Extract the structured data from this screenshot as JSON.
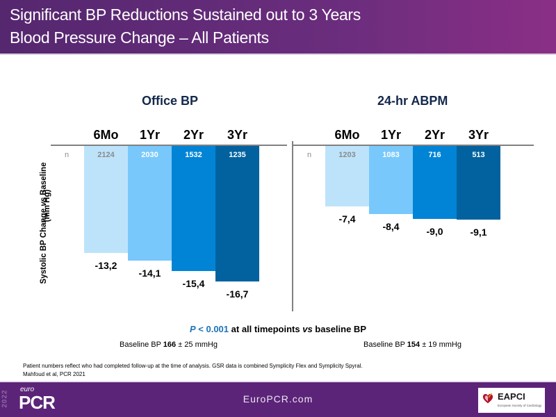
{
  "header": {
    "title_line1": "Significant BP Reductions Sustained out to 3 Years",
    "title_line2": "Blood Pressure Change – All Patients"
  },
  "chart_data": [
    {
      "type": "bar",
      "title": "Office BP",
      "categories": [
        "6Mo",
        "1Yr",
        "2Yr",
        "3Yr"
      ],
      "n_label": "n",
      "n_values": [
        "2124",
        "2030",
        "1532",
        "1235"
      ],
      "values": [
        -13.2,
        -14.1,
        -15.4,
        -16.7
      ],
      "value_labels": [
        "-13,2",
        "-14,1",
        "-15,4",
        "-16,7"
      ],
      "ylabel": "Systolic BP Change vs Baseline (mm Hg)",
      "ylim": [
        -17,
        0
      ],
      "colors": [
        "#bde3fb",
        "#78c8fc",
        "#0284d6",
        "#02629f"
      ]
    },
    {
      "type": "bar",
      "title": "24-hr ABPM",
      "categories": [
        "6Mo",
        "1Yr",
        "2Yr",
        "3Yr"
      ],
      "n_label": "n",
      "n_values": [
        "1203",
        "1083",
        "716",
        "513"
      ],
      "values": [
        -7.4,
        -8.4,
        -9.0,
        -9.1
      ],
      "value_labels": [
        "-7,4",
        "-8,4",
        "-9,0",
        "-9,1"
      ],
      "ylim": [
        -17,
        0
      ],
      "colors": [
        "#bde3fb",
        "#78c8fc",
        "#0284d6",
        "#02629f"
      ]
    }
  ],
  "yaxis": {
    "line1_a": "Systolic BP Change ",
    "line1_b": "vs",
    "line1_c": " Baseline",
    "line2": "(mm Hg)"
  },
  "significance": {
    "p_part": "P",
    "p_value": " < 0.001",
    "rest_a": " at all timepoints ",
    "rest_vs": "vs",
    "rest_b": " baseline BP"
  },
  "baseline": {
    "office_prefix": "Baseline BP ",
    "office_value": "166",
    "office_suffix": " ± 25 mmHg",
    "abpm_prefix": "Baseline BP ",
    "abpm_value": "154",
    "abpm_suffix": " ± 19 mmHg"
  },
  "footnotes": {
    "line1": "Patient numbers reflect who had completed follow-up at the time of analysis. GSR data is combined Symplicity Flex and Symplicity Spyral.",
    "line2": "Mahfoud et al, PCR 2021"
  },
  "footer": {
    "logo_year": "2022",
    "logo_euro": "euro",
    "logo_pcr": "PCR",
    "website": "EuroPCR.com",
    "partner_name": "EAPCI",
    "partner_sub": "European Society of Cardiology"
  }
}
